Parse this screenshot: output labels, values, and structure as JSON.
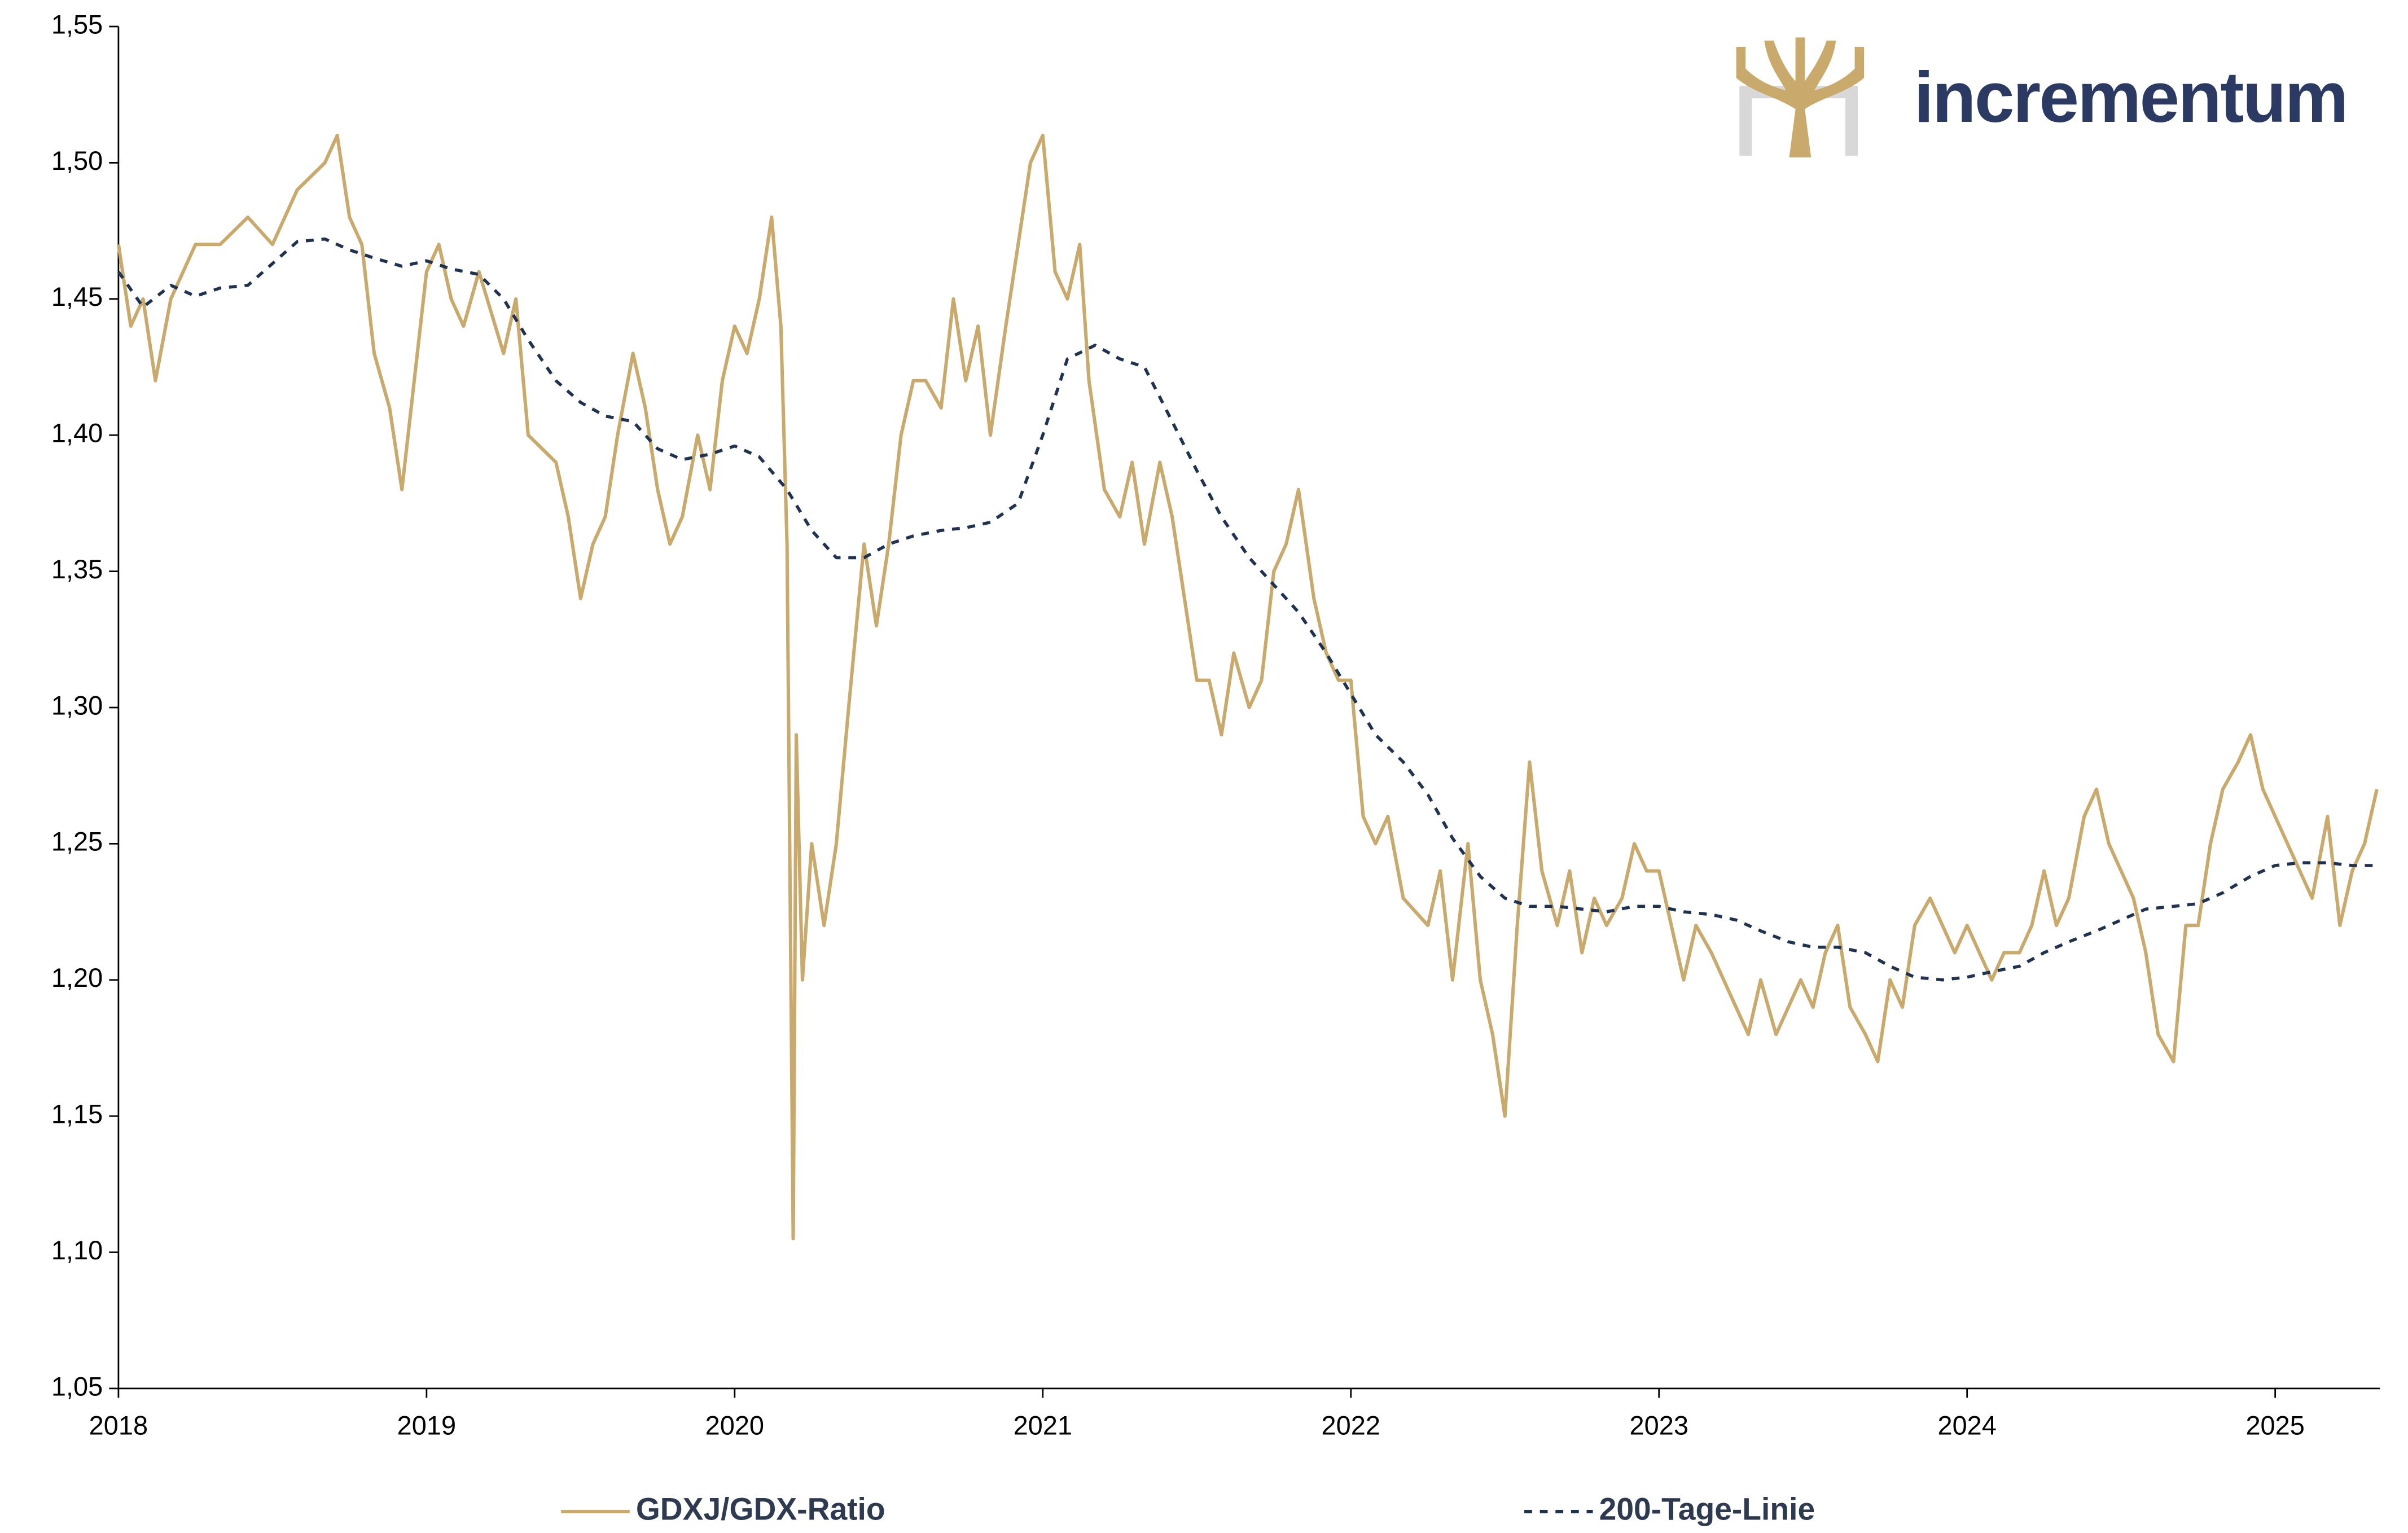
{
  "chart_data": {
    "type": "line",
    "logo": "incrementum",
    "xlim": [
      2018,
      2025.34
    ],
    "xticks": [
      2018,
      2019,
      2020,
      2021,
      2022,
      2023,
      2024,
      2025
    ],
    "ylim": [
      1.05,
      1.55
    ],
    "yticks": [
      {
        "value": 1.05,
        "label": "1,05"
      },
      {
        "value": 1.1,
        "label": "1,10"
      },
      {
        "value": 1.15,
        "label": "1,15"
      },
      {
        "value": 1.2,
        "label": "1,20"
      },
      {
        "value": 1.25,
        "label": "1,25"
      },
      {
        "value": 1.3,
        "label": "1,30"
      },
      {
        "value": 1.35,
        "label": "1,35"
      },
      {
        "value": 1.4,
        "label": "1,40"
      },
      {
        "value": 1.45,
        "label": "1,45"
      },
      {
        "value": 1.5,
        "label": "1,50"
      },
      {
        "value": 1.55,
        "label": "1,55"
      }
    ],
    "grid": false,
    "legend": "bottom",
    "series": [
      {
        "name": "GDXJ/GDX-Ratio",
        "color": "#c9aa6c",
        "dash": false,
        "x": [
          2018,
          2018.04,
          2018.08,
          2018.12,
          2018.17,
          2018.25,
          2018.33,
          2018.42,
          2018.5,
          2018.58,
          2018.67,
          2018.71,
          2018.75,
          2018.79,
          2018.83,
          2018.88,
          2018.92,
          2018.96,
          2019,
          2019.04,
          2019.08,
          2019.12,
          2019.17,
          2019.25,
          2019.29,
          2019.33,
          2019.42,
          2019.46,
          2019.5,
          2019.54,
          2019.58,
          2019.62,
          2019.67,
          2019.71,
          2019.75,
          2019.79,
          2019.83,
          2019.88,
          2019.92,
          2019.96,
          2020,
          2020.04,
          2020.08,
          2020.12,
          2020.15,
          2020.17,
          2020.19,
          2020.2,
          2020.22,
          2020.25,
          2020.29,
          2020.33,
          2020.37,
          2020.42,
          2020.46,
          2020.5,
          2020.54,
          2020.58,
          2020.62,
          2020.67,
          2020.71,
          2020.75,
          2020.79,
          2020.83,
          2020.88,
          2020.92,
          2020.96,
          2021,
          2021.04,
          2021.08,
          2021.12,
          2021.15,
          2021.2,
          2021.25,
          2021.29,
          2021.33,
          2021.38,
          2021.42,
          2021.46,
          2021.5,
          2021.54,
          2021.58,
          2021.62,
          2021.67,
          2021.71,
          2021.75,
          2021.79,
          2021.83,
          2021.88,
          2021.92,
          2021.96,
          2022,
          2022.04,
          2022.08,
          2022.12,
          2022.17,
          2022.25,
          2022.29,
          2022.33,
          2022.38,
          2022.42,
          2022.46,
          2022.5,
          2022.54,
          2022.58,
          2022.62,
          2022.67,
          2022.71,
          2022.75,
          2022.79,
          2022.83,
          2022.88,
          2022.92,
          2022.96,
          2023,
          2023.04,
          2023.08,
          2023.12,
          2023.17,
          2023.21,
          2023.25,
          2023.29,
          2023.33,
          2023.38,
          2023.42,
          2023.46,
          2023.5,
          2023.54,
          2023.58,
          2023.62,
          2023.67,
          2023.71,
          2023.75,
          2023.79,
          2023.83,
          2023.88,
          2023.92,
          2023.96,
          2024,
          2024.04,
          2024.08,
          2024.12,
          2024.17,
          2024.21,
          2024.25,
          2024.29,
          2024.33,
          2024.38,
          2024.42,
          2024.46,
          2024.5,
          2024.54,
          2024.58,
          2024.62,
          2024.67,
          2024.71,
          2024.75,
          2024.79,
          2024.83,
          2024.88,
          2024.92,
          2024.96,
          2025,
          2025.04,
          2025.08,
          2025.12,
          2025.17,
          2025.21,
          2025.25,
          2025.29,
          2025.33
        ],
        "values": [
          1.47,
          1.44,
          1.45,
          1.42,
          1.45,
          1.47,
          1.47,
          1.48,
          1.47,
          1.49,
          1.5,
          1.51,
          1.48,
          1.47,
          1.43,
          1.41,
          1.38,
          1.42,
          1.46,
          1.47,
          1.45,
          1.44,
          1.46,
          1.43,
          1.45,
          1.4,
          1.39,
          1.37,
          1.34,
          1.36,
          1.37,
          1.4,
          1.43,
          1.41,
          1.38,
          1.36,
          1.37,
          1.4,
          1.38,
          1.42,
          1.44,
          1.43,
          1.45,
          1.48,
          1.44,
          1.36,
          1.105,
          1.29,
          1.2,
          1.25,
          1.22,
          1.25,
          1.3,
          1.36,
          1.33,
          1.36,
          1.4,
          1.42,
          1.42,
          1.41,
          1.45,
          1.42,
          1.44,
          1.4,
          1.44,
          1.47,
          1.5,
          1.51,
          1.46,
          1.45,
          1.47,
          1.42,
          1.38,
          1.37,
          1.39,
          1.36,
          1.39,
          1.37,
          1.34,
          1.31,
          1.31,
          1.29,
          1.32,
          1.3,
          1.31,
          1.35,
          1.36,
          1.38,
          1.34,
          1.32,
          1.31,
          1.31,
          1.26,
          1.25,
          1.26,
          1.23,
          1.22,
          1.24,
          1.2,
          1.25,
          1.2,
          1.18,
          1.15,
          1.22,
          1.28,
          1.24,
          1.22,
          1.24,
          1.21,
          1.23,
          1.22,
          1.23,
          1.25,
          1.24,
          1.24,
          1.22,
          1.2,
          1.22,
          1.21,
          1.2,
          1.19,
          1.18,
          1.2,
          1.18,
          1.19,
          1.2,
          1.19,
          1.21,
          1.22,
          1.19,
          1.18,
          1.17,
          1.2,
          1.19,
          1.22,
          1.23,
          1.22,
          1.21,
          1.22,
          1.21,
          1.2,
          1.21,
          1.21,
          1.22,
          1.24,
          1.22,
          1.23,
          1.26,
          1.27,
          1.25,
          1.24,
          1.23,
          1.21,
          1.18,
          1.17,
          1.22,
          1.22,
          1.25,
          1.27,
          1.28,
          1.29,
          1.27,
          1.26,
          1.25,
          1.24,
          1.23,
          1.26,
          1.22,
          1.24,
          1.25,
          1.27
        ]
      },
      {
        "name": "200-Tage-Linie",
        "color": "#1f3350",
        "dash": true,
        "x": [
          2018,
          2018.08,
          2018.17,
          2018.25,
          2018.33,
          2018.42,
          2018.5,
          2018.58,
          2018.67,
          2018.75,
          2018.83,
          2018.92,
          2019,
          2019.08,
          2019.17,
          2019.25,
          2019.33,
          2019.42,
          2019.5,
          2019.58,
          2019.67,
          2019.75,
          2019.83,
          2019.92,
          2020,
          2020.08,
          2020.17,
          2020.25,
          2020.33,
          2020.42,
          2020.5,
          2020.58,
          2020.67,
          2020.75,
          2020.83,
          2020.92,
          2021,
          2021.08,
          2021.17,
          2021.25,
          2021.33,
          2021.42,
          2021.5,
          2021.58,
          2021.67,
          2021.75,
          2021.83,
          2021.92,
          2022,
          2022.08,
          2022.17,
          2022.25,
          2022.33,
          2022.42,
          2022.5,
          2022.58,
          2022.67,
          2022.75,
          2022.83,
          2022.92,
          2023,
          2023.08,
          2023.17,
          2023.25,
          2023.33,
          2023.42,
          2023.5,
          2023.58,
          2023.67,
          2023.75,
          2023.83,
          2023.92,
          2024,
          2024.08,
          2024.17,
          2024.25,
          2024.33,
          2024.42,
          2024.5,
          2024.58,
          2024.67,
          2024.75,
          2024.83,
          2024.92,
          2025,
          2025.08,
          2025.17,
          2025.25,
          2025.33
        ],
        "values": [
          1.46,
          1.447,
          1.455,
          1.451,
          1.454,
          1.455,
          1.463,
          1.471,
          1.472,
          1.468,
          1.465,
          1.462,
          1.464,
          1.461,
          1.459,
          1.45,
          1.435,
          1.42,
          1.412,
          1.407,
          1.405,
          1.395,
          1.391,
          1.393,
          1.396,
          1.392,
          1.38,
          1.365,
          1.355,
          1.355,
          1.36,
          1.363,
          1.365,
          1.366,
          1.368,
          1.375,
          1.4,
          1.428,
          1.433,
          1.428,
          1.425,
          1.405,
          1.387,
          1.37,
          1.355,
          1.345,
          1.335,
          1.32,
          1.305,
          1.29,
          1.28,
          1.268,
          1.252,
          1.238,
          1.23,
          1.227,
          1.227,
          1.226,
          1.225,
          1.227,
          1.227,
          1.225,
          1.224,
          1.222,
          1.218,
          1.214,
          1.212,
          1.212,
          1.21,
          1.205,
          1.201,
          1.2,
          1.201,
          1.203,
          1.205,
          1.21,
          1.214,
          1.218,
          1.222,
          1.226,
          1.227,
          1.228,
          1.232,
          1.238,
          1.242,
          1.243,
          1.243,
          1.242,
          1.242
        ]
      }
    ]
  }
}
